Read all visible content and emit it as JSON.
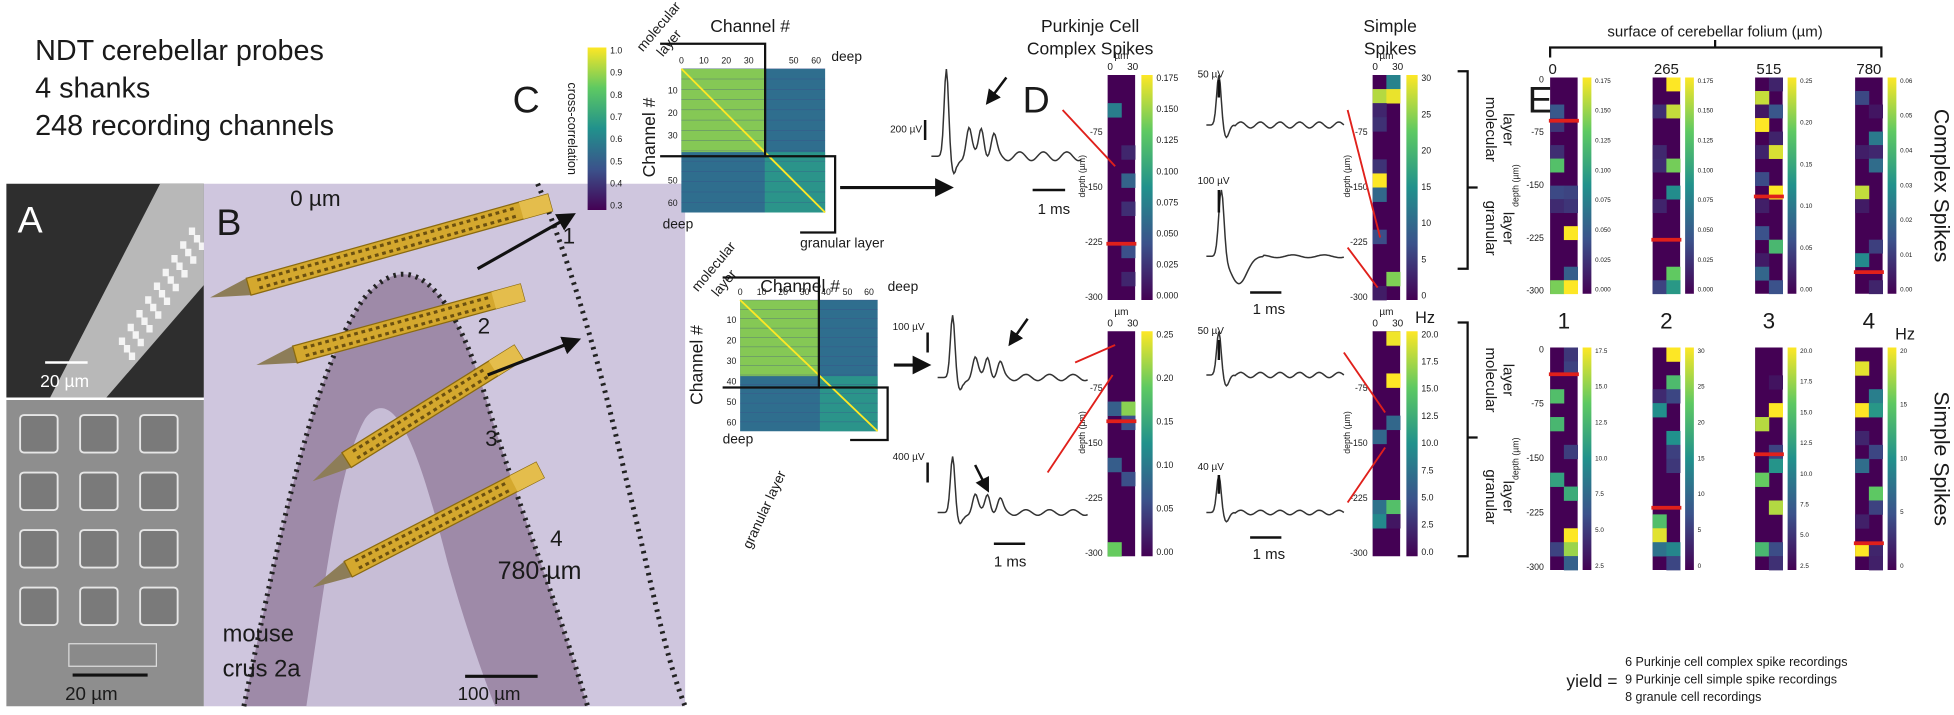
{
  "header": {
    "lines": [
      "NDT cerebellar probes",
      "4 shanks",
      "248 recording channels"
    ]
  },
  "panel_a": {
    "label": "A",
    "scale_top": "20 µm",
    "scale_bottom": "20 µm"
  },
  "panel_b": {
    "label": "B",
    "top_depth": "0 µm",
    "bottom_depth": "780 µm",
    "shanks": [
      "1",
      "2",
      "3",
      "4"
    ],
    "region": [
      "mouse",
      "crus 2a"
    ],
    "scale": "100 µm"
  },
  "panel_c": {
    "label": "C",
    "colorbar": {
      "title": "cross-correlation",
      "ticks": [
        "1.0",
        "0.9",
        "0.8",
        "0.7",
        "0.6",
        "0.5",
        "0.4",
        "0.3"
      ]
    },
    "top": {
      "x_title": "Channel #",
      "y_title": "Channel #",
      "x_ticks": [
        "0",
        "10",
        "20",
        "30",
        "50",
        "60"
      ],
      "y_ticks": [
        "10",
        "20",
        "30",
        "50",
        "60"
      ],
      "molecular": [
        "molecular",
        "layer"
      ],
      "deep_top": "deep",
      "deep_left": "deep",
      "granular": "granular layer"
    },
    "bottom": {
      "x_title": "Channel #",
      "y_title": "Channel #",
      "x_ticks": [
        "0",
        "10",
        "20",
        "30",
        "40",
        "50",
        "60"
      ],
      "y_ticks": [
        "10",
        "20",
        "30",
        "40",
        "50",
        "60"
      ],
      "molecular": [
        "molecular",
        "layer"
      ],
      "deep_top": "deep",
      "deep_left": "deep",
      "granular": "granular layer"
    }
  },
  "panel_d": {
    "label": "D",
    "complex_title": [
      "Purkinje Cell",
      "Complex Spikes"
    ],
    "simple_title": [
      "Simple",
      "Spikes"
    ],
    "unit": "µm",
    "x_ticks": [
      "0",
      "30"
    ],
    "depth_label": "depth (µm)",
    "depth_ticks": [
      "-75",
      "-150",
      "-225",
      "-300"
    ],
    "complex_top": {
      "colorbar_ticks": [
        "0.175",
        "0.150",
        "0.125",
        "0.100",
        "0.075",
        "0.050",
        "0.025",
        "0.000"
      ],
      "scale_v": [
        "200 µV"
      ],
      "scale_t": "1 ms"
    },
    "complex_bottom": {
      "colorbar_ticks": [
        "0.25",
        "0.20",
        "0.15",
        "0.10",
        "0.05",
        "0.00"
      ],
      "scale_v": [
        "100 µV",
        "400 µV"
      ],
      "scale_t": "1 ms"
    },
    "simple_top": {
      "colorbar_ticks": [
        "30",
        "25",
        "20",
        "15",
        "10",
        "5",
        "0"
      ],
      "scale_v": [
        "50 µV",
        "100 µV"
      ],
      "scale_t": "1 ms"
    },
    "simple_bottom": {
      "colorbar_ticks": [
        "20.0",
        "17.5",
        "15.0",
        "12.5",
        "10.0",
        "7.5",
        "5.0",
        "2.5",
        "0.0"
      ],
      "unit": "Hz",
      "scale_v": [
        "50 µV",
        "40 µV"
      ],
      "scale_t": "1 ms"
    },
    "layers": {
      "molecular": [
        "molecular",
        "layer"
      ],
      "granular": [
        "granular",
        "layer"
      ]
    }
  },
  "panel_e": {
    "label": "E",
    "title": "surface of cerebellar folium (µm)",
    "positions": [
      "0",
      "265",
      "515",
      "780"
    ],
    "shanks": [
      "1",
      "2",
      "3",
      "4"
    ],
    "row_titles": [
      "Complex Spikes",
      "Simple Spikes"
    ],
    "unit": "Hz",
    "depth_label": "depth (µm)",
    "depth_ticks": [
      "0",
      "-75",
      "-150",
      "-225",
      "-300"
    ],
    "complex_colorbars": [
      [
        "0.175",
        "0.150",
        "0.125",
        "0.100",
        "0.075",
        "0.050",
        "0.025",
        "0.000"
      ],
      [
        "0.175",
        "0.150",
        "0.125",
        "0.100",
        "0.075",
        "0.050",
        "0.025",
        "0.000"
      ],
      [
        "0.25",
        "0.20",
        "0.15",
        "0.10",
        "0.05",
        "0.00"
      ],
      [
        "0.06",
        "0.05",
        "0.04",
        "0.03",
        "0.02",
        "0.01",
        "0.00"
      ]
    ],
    "simple_colorbars": [
      [
        "17.5",
        "15.0",
        "12.5",
        "10.0",
        "7.5",
        "5.0",
        "2.5"
      ],
      [
        "30",
        "25",
        "20",
        "15",
        "10",
        "5",
        "0"
      ],
      [
        "20.0",
        "17.5",
        "15.0",
        "12.5",
        "10.0",
        "7.5",
        "5.0",
        "2.5"
      ],
      [
        "20",
        "15",
        "10",
        "5",
        "0"
      ]
    ],
    "yield_label": "yield =",
    "yield_lines": [
      "6 Purkinje cell complex spike recordings",
      "9 Purkinje cell simple spike recordings",
      "8 granule cell recordings"
    ]
  }
}
